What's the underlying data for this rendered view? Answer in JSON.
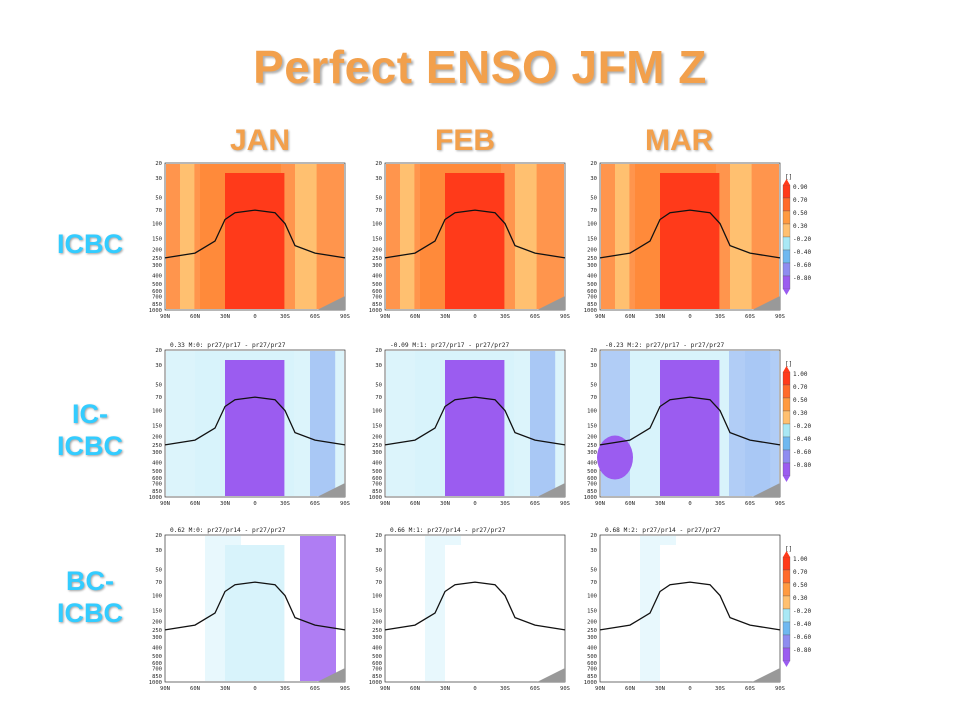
{
  "slide": {
    "title": "Perfect ENSO JFM Z",
    "columns": [
      "JAN",
      "FEB",
      "MAR"
    ],
    "rows": [
      {
        "label_line1": "ICBC",
        "label_line2": ""
      },
      {
        "label_line1": "IC-",
        "label_line2": "ICBC"
      },
      {
        "label_line1": "BC-",
        "label_line2": "ICBC"
      }
    ]
  },
  "chart_data": {
    "type": "heatmap",
    "x_ticks": [
      "90N",
      "60N",
      "30N",
      "0",
      "30S",
      "60S",
      "90S"
    ],
    "y_ticks": [
      "20",
      "30",
      "50",
      "70",
      "100",
      "150",
      "200",
      "250",
      "300",
      "400",
      "500",
      "600",
      "700",
      "850",
      "1000"
    ],
    "colorbar_unit": "[]",
    "colorbars": [
      {
        "labels": [
          "0.90",
          "0.70",
          "0.50",
          "0.30",
          "-0.20",
          "-0.40",
          "-0.60",
          "-0.80"
        ]
      },
      {
        "labels": [
          "1.00",
          "0.70",
          "0.50",
          "0.30",
          "-0.20",
          "-0.40",
          "-0.60",
          "-0.80"
        ]
      },
      {
        "labels": [
          "1.00",
          "0.70",
          "0.50",
          "0.30",
          "-0.20",
          "-0.40",
          "-0.60",
          "-0.80"
        ]
      }
    ],
    "panel_titles": [
      [
        "",
        "",
        ""
      ],
      [
        "0.33 M:0: pr27/pr17 - pr27/pr27",
        "-0.09 M:1: pr27/pr17 - pr27/pr27",
        "-0.23 M:2: pr27/pr17 - pr27/pr27"
      ],
      [
        "0.62 M:0: pr27/pr14 - pr27/pr27",
        "0.66 M:1: pr27/pr14 - pr27/pr27",
        "0.68 M:2: pr27/pr14 - pr27/pr27"
      ]
    ],
    "panels": [
      [
        {
          "mode": "pos",
          "core": 0.9,
          "bg": 0.5
        },
        {
          "mode": "pos",
          "core": 0.9,
          "bg": 0.5
        },
        {
          "mode": "pos",
          "core": 0.9,
          "bg": 0.5
        }
      ],
      [
        {
          "mode": "neg",
          "core": -0.8,
          "bg": -0.2
        },
        {
          "mode": "neg",
          "core": -0.8,
          "bg": -0.2
        },
        {
          "mode": "neg",
          "core": -0.8,
          "bg": -0.3
        }
      ],
      [
        {
          "mode": "weak",
          "core": -0.2,
          "bg": 0.0
        },
        {
          "mode": "weak",
          "core": 0.0,
          "bg": 0.0
        },
        {
          "mode": "weak",
          "core": 0.0,
          "bg": 0.0
        }
      ]
    ],
    "tropopause_hpa": {
      "lat": [
        90,
        60,
        40,
        30,
        20,
        0,
        -20,
        -30,
        -40,
        -60,
        -90
      ],
      "p": [
        250,
        220,
        160,
        90,
        75,
        70,
        75,
        100,
        180,
        220,
        250
      ]
    },
    "colors": {
      "pos_high": "#ff3a1a",
      "pos_mid": "#ff8a3a",
      "pos_low": "#ffc070",
      "neg_high": "#9b5cf0",
      "neg_mid": "#a9c8f5",
      "neg_low": "#d8f3fb",
      "title_orange": "#f2a04c",
      "label_cyan": "#33ccff"
    }
  }
}
